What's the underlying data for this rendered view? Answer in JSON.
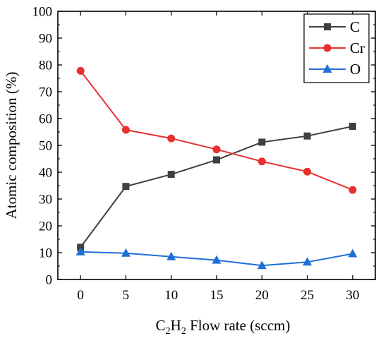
{
  "chart_data": {
    "type": "line",
    "x": [
      0,
      5,
      10,
      15,
      20,
      25,
      30
    ],
    "xticks": [
      "0",
      "5",
      "10",
      "15",
      "20",
      "25",
      "30"
    ],
    "yticks": [
      "0",
      "10",
      "20",
      "30",
      "40",
      "50",
      "60",
      "70",
      "80",
      "90",
      "100"
    ],
    "xlim": [
      -2.5,
      32.5
    ],
    "ylim": [
      0,
      100
    ],
    "xlabel": {
      "prefix": "C",
      "sub1": "2",
      "mid": "H",
      "sub2": "2",
      "suffix": " Flow rate (sccm)"
    },
    "ylabel": "Atomic composition (%)",
    "legend_position": "top-right",
    "series": [
      {
        "name": "C",
        "color": "#404040",
        "marker": "square",
        "values": [
          12.0,
          34.7,
          39.2,
          44.6,
          51.2,
          53.5,
          57.1
        ]
      },
      {
        "name": "Cr",
        "color": "#e8302f",
        "marker": "circle",
        "values": [
          77.8,
          55.8,
          52.6,
          48.5,
          44.0,
          40.2,
          33.4
        ]
      },
      {
        "name": "O",
        "color": "#1f6fd8",
        "marker": "triangle",
        "values": [
          10.3,
          9.8,
          8.5,
          7.2,
          5.2,
          6.5,
          9.6
        ]
      }
    ]
  }
}
